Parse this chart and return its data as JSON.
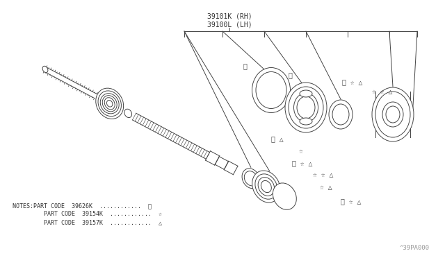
{
  "bg_color": "#ffffff",
  "line_color": "#444444",
  "text_color": "#333333",
  "part_label_1": "39101K (RH)",
  "part_label_2": "39100L (LH)",
  "note_line1": "NOTES:PART CODE  39626K  ............  ※",
  "note_line2": "         PART CODE  39154K  ............  ☆",
  "note_line3": "         PART CODE  39157K  ............  △",
  "watermark": "^39PA000",
  "sym_rice": "※",
  "sym_star": "☆",
  "sym_tri": "△",
  "fig_width": 6.4,
  "fig_height": 3.72,
  "dpi": 100
}
